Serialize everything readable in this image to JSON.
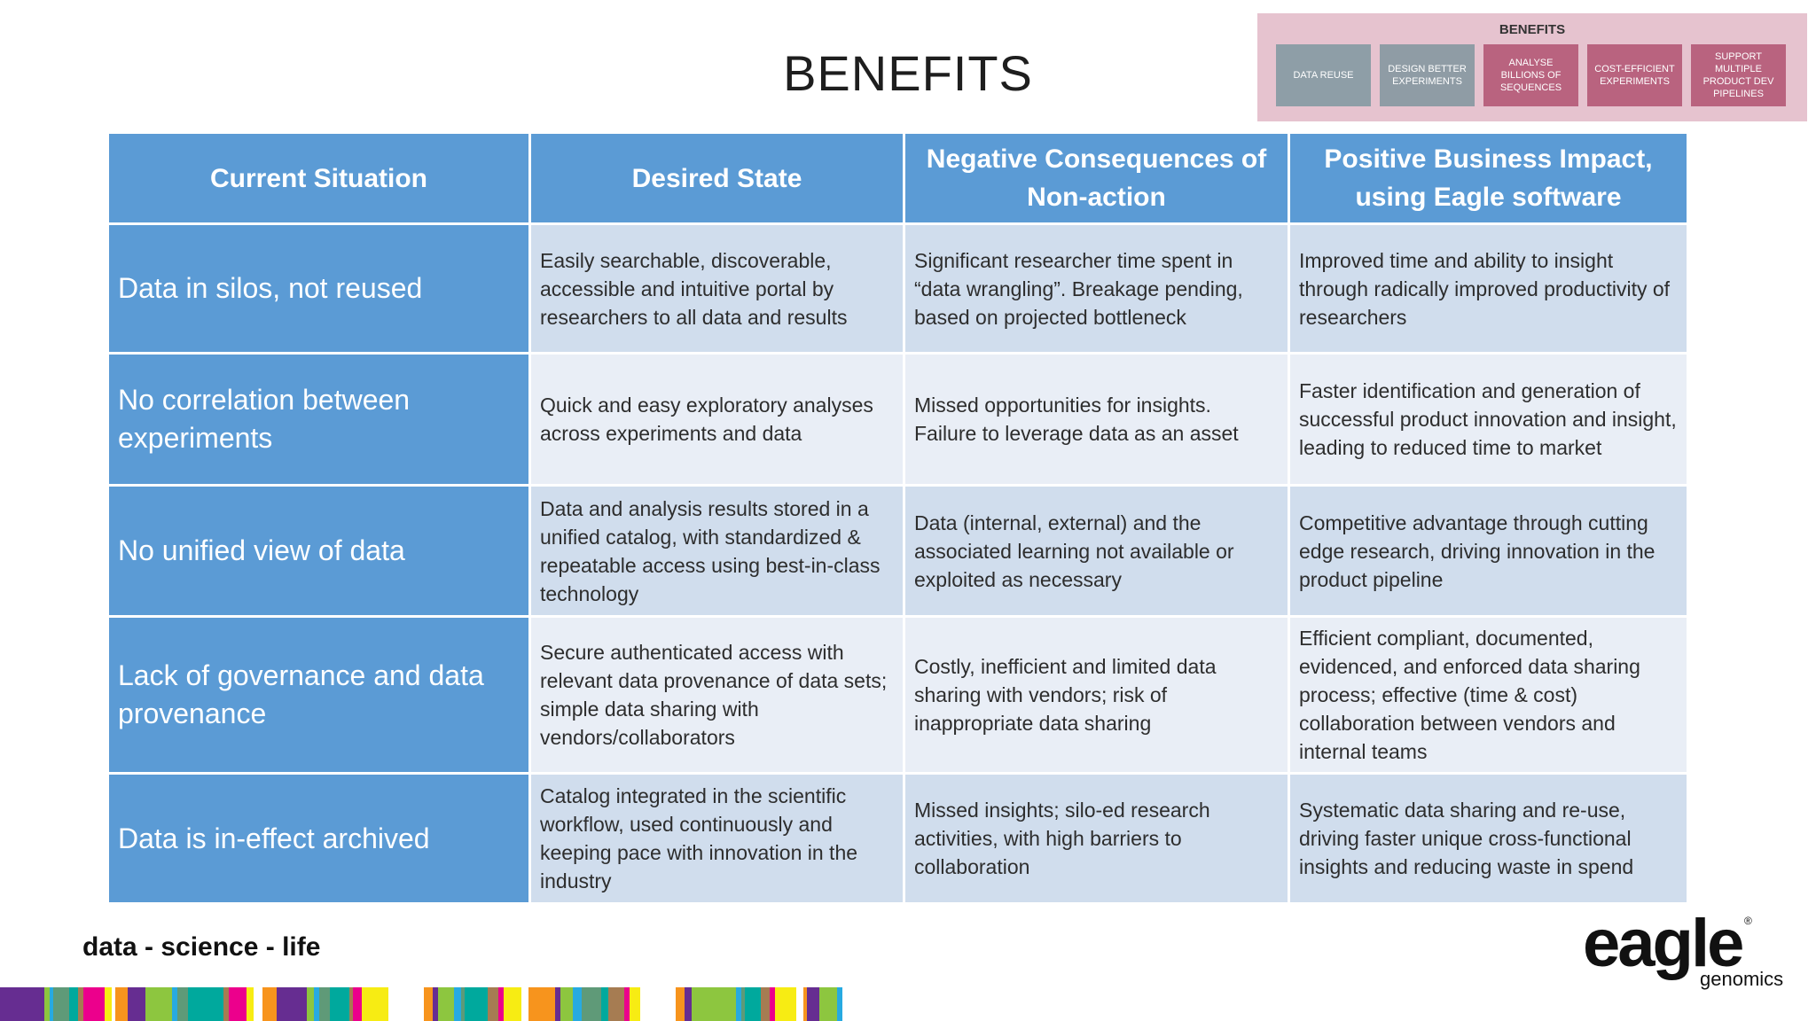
{
  "page_title": "BENEFITS",
  "mini_nav": {
    "title": "BENEFITS",
    "items": [
      "DATA REUSE",
      "DESIGN BETTER EXPERIMENTS",
      "ANALYSE BILLIONS OF SEQUENCES",
      "COST-EFFICIENT EXPERIMENTS",
      "SUPPORT MULTIPLE PRODUCT DEV PIPELINES"
    ]
  },
  "table": {
    "headers": [
      "Current Situation",
      "Desired State",
      "Negative Consequences of Non-action",
      "Positive Business Impact, using Eagle software"
    ],
    "rows": [
      {
        "situation": "Data in silos, not reused",
        "desired": "Easily searchable, discoverable, accessible and intuitive portal by researchers to all data and results",
        "negative": "Significant researcher time spent in “data wrangling”. Breakage pending, based on projected bottleneck",
        "positive": "Improved time and ability to insight through radically improved productivity of researchers"
      },
      {
        "situation": "No correlation between experiments",
        "desired": "Quick and easy exploratory analyses across experiments and data",
        "negative": "Missed opportunities for insights. Failure to leverage data as an asset",
        "positive": "Faster identification and generation of successful product innovation and insight, leading to reduced time to market"
      },
      {
        "situation": "No unified view of data",
        "desired": "Data and analysis results stored in a unified catalog, with standardized & repeatable access using best-in-class technology",
        "negative": "Data (internal, external) and the associated learning not available or exploited as necessary",
        "positive": "Competitive advantage through cutting edge research, driving innovation in the product pipeline"
      },
      {
        "situation": "Lack of governance and data provenance",
        "desired": "Secure authenticated access with relevant data provenance of data sets; simple data sharing with vendors/collaborators",
        "negative": "Costly, inefficient and limited data sharing with vendors; risk of inappropriate data sharing",
        "positive": "Efficient compliant, documented, evidenced, and enforced data sharing process; effective (time & cost) collaboration between vendors and internal teams"
      },
      {
        "situation": "Data is in-effect archived",
        "desired": "Catalog integrated in the scientific workflow, used continuously and keeping pace with innovation in the industry",
        "negative": "Missed insights; silo-ed research activities, with high barriers to collaboration",
        "positive": "Systematic data sharing and re-use, driving faster unique cross-functional insights and reducing waste in spend"
      }
    ]
  },
  "footer": {
    "tagline": "data - science - life",
    "stripe_colors": [
      "#8dc63f",
      "#00a99d",
      "#f7ec13",
      "#662d91",
      "#5f9a78",
      "#ec008c",
      "#f7941d",
      "#27aae1",
      "#a67c52",
      "#ffffff"
    ]
  },
  "logo": {
    "word": "eagle",
    "sub": "genomics",
    "reg": "®"
  }
}
